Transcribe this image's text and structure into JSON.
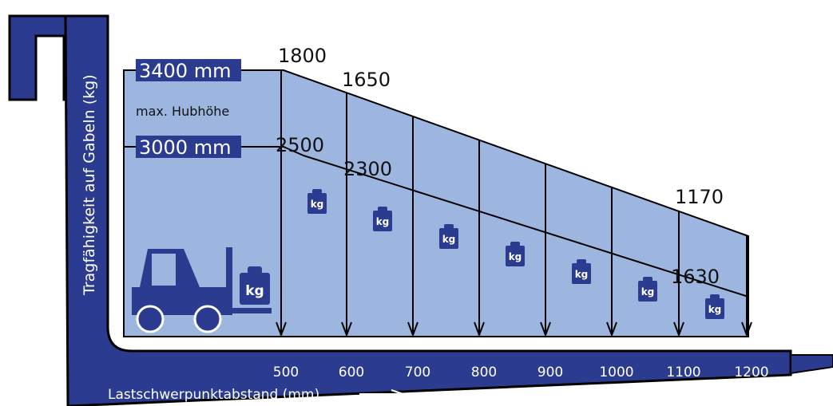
{
  "axis_title": "Tragfähigkeit auf Gabeln (kg)",
  "upper_curve": {
    "height": "3400 mm",
    "note": "max. Hubhöhe",
    "labels": [
      "1800",
      "1650",
      "1170"
    ]
  },
  "lower_curve": {
    "height": "3000 mm",
    "labels": [
      "2500",
      "2300",
      "1630"
    ]
  },
  "x_labels": [
    "500",
    "600",
    "700",
    "800",
    "900",
    "1000",
    "1100",
    "1200"
  ],
  "x_title": "Lastschwerpunktabstand (mm)",
  "weight_icon": "kg"
}
